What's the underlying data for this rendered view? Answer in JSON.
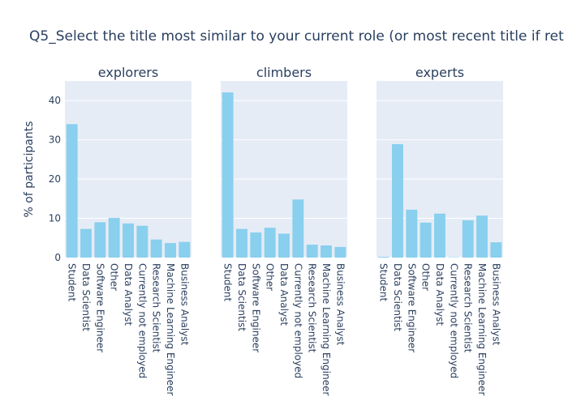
{
  "chart_data": {
    "type": "bar",
    "title": "Q5_Select the title most similar to your current role (or most recent title if ret",
    "ylabel": "% of participants",
    "ylim": [
      0,
      45
    ],
    "yticks": [
      0,
      10,
      20,
      30,
      40
    ],
    "categories": [
      "Student",
      "Data Scientist",
      "Software Engineer",
      "Other",
      "Data Analyst",
      "Currently not employed",
      "Research Scientist",
      "Machine Learning Engineer",
      "Business Analyst"
    ],
    "panels": [
      {
        "name": "explorers",
        "values": [
          34.0,
          7.3,
          9.0,
          10.1,
          8.7,
          8.1,
          4.6,
          3.7,
          4.0
        ]
      },
      {
        "name": "climbers",
        "values": [
          42.1,
          7.3,
          6.4,
          7.6,
          6.1,
          14.8,
          3.3,
          3.1,
          2.7
        ]
      },
      {
        "name": "experts",
        "values": [
          0.2,
          28.9,
          12.2,
          8.9,
          11.2,
          0.1,
          9.5,
          10.7,
          3.9
        ]
      }
    ],
    "colors": {
      "bar": "#89cfee",
      "plot_bg": "#e5ecf6",
      "text": "#2a3f5f"
    },
    "grid": true
  }
}
